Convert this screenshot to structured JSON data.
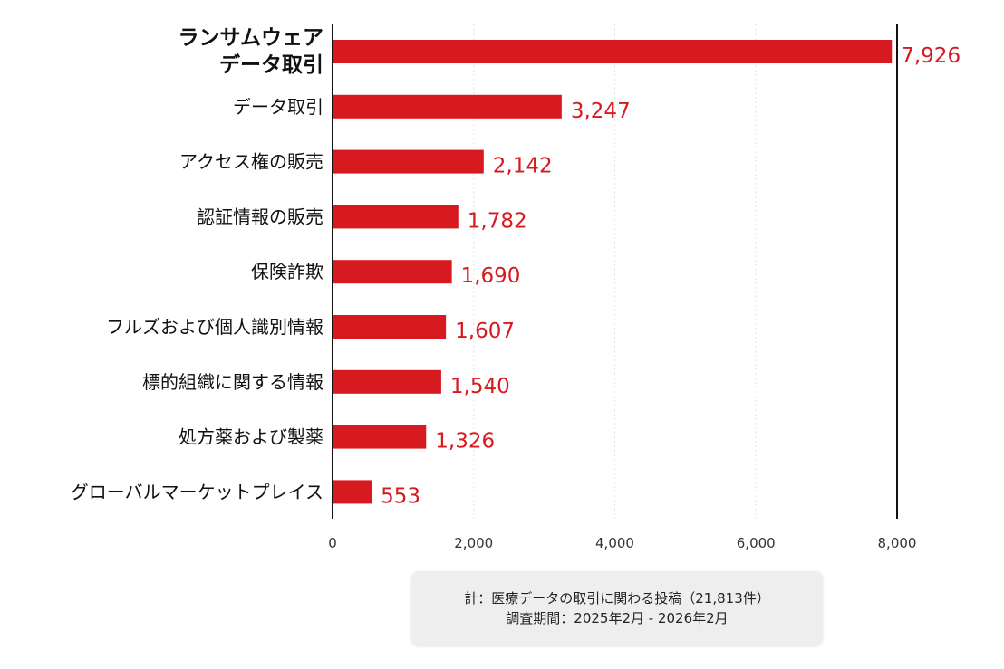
{
  "chart_data": {
    "type": "bar",
    "orientation": "horizontal",
    "categories": [
      [
        "ランサムウェア",
        "データ取引"
      ],
      [
        "データ取引"
      ],
      [
        "アクセス権の販売"
      ],
      [
        "認証情報の販売"
      ],
      [
        "保険詐欺"
      ],
      [
        "フルズおよび個人識別情報"
      ],
      [
        "標的組織に関する情報"
      ],
      [
        "処方薬および製薬"
      ],
      [
        "グローバルマーケットプレイス"
      ]
    ],
    "values": [
      7926,
      3247,
      2142,
      1782,
      1690,
      1607,
      1540,
      1326,
      553
    ],
    "value_labels": [
      "7,926",
      "3,247",
      "2,142",
      "1,782",
      "1,690",
      "1,607",
      "1,540",
      "1,326",
      "553"
    ],
    "xlim": [
      0,
      8000
    ],
    "xticks": [
      0,
      2000,
      4000,
      6000,
      8000
    ],
    "xtick_labels": [
      "0",
      "2,000",
      "4,000",
      "6,000",
      "8,000"
    ],
    "reference_line": 8000,
    "grid": true,
    "bar_color": "#d71920",
    "value_label_color": "#d71920",
    "highlight_first_label": true
  },
  "note": {
    "line1": "計：医療データの取引に関わる投稿（21,813件）",
    "line2": "調査期間：2025年2月 - 2026年2月"
  }
}
